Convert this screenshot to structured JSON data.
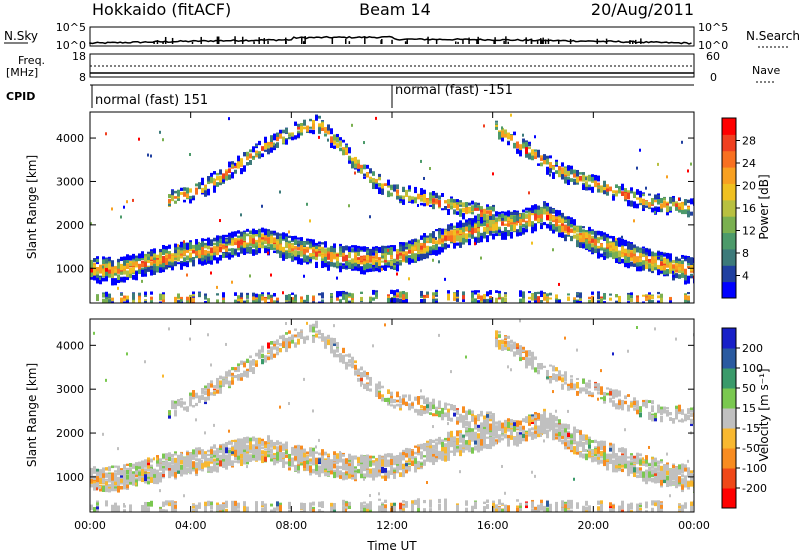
{
  "header": {
    "title": "Hokkaido (fitACF)",
    "beam": "Beam 14",
    "date": "20/Aug/2011"
  },
  "top_panels": {
    "nsky_label": "N.Sky",
    "nsky_ticks": [
      "10^5",
      "10^0"
    ],
    "nsearch_label": "N.Search",
    "nsearch_ticks": [
      "10^5",
      "10^0"
    ],
    "freq_label_1": "Freq.",
    "freq_label_2": "[MHz]",
    "freq_ticks": [
      "18",
      "8"
    ],
    "nave_label": "Nave",
    "nave_ticks": [
      "60",
      "0"
    ],
    "cpid_label": "CPID",
    "cpid_segments": [
      {
        "label": "normal (fast) 151",
        "start_hour": 0
      },
      {
        "label": "normal (fast) -151",
        "start_hour": 12
      }
    ]
  },
  "chart_data": [
    {
      "type": "heatmap",
      "name": "power-panel",
      "ylabel": "Slant Range [km]",
      "ylim": [
        200,
        4600
      ],
      "y_ticks": [
        "4000",
        "3000",
        "2000",
        "1000"
      ],
      "y_tick_values": [
        4000,
        3000,
        2000,
        1000
      ],
      "xlim_hours": [
        0,
        24
      ],
      "colorbar": {
        "label": "Power [dB]",
        "ticks": [
          "28",
          "24",
          "20",
          "16",
          "12",
          "8",
          "4"
        ],
        "tick_values": [
          28,
          24,
          20,
          16,
          12,
          8,
          4
        ],
        "range": [
          0,
          30
        ],
        "colors": [
          "#0000ff",
          "#2040a0",
          "#3c7a7a",
          "#4c9a6a",
          "#7ab050",
          "#b8c040",
          "#f0c020",
          "#f8a020",
          "#f87020",
          "#f04020",
          "#ff0000"
        ]
      },
      "bands": [
        {
          "kind": "main-echo",
          "points": [
            [
              0,
              1050
            ],
            [
              1,
              1000
            ],
            [
              2,
              1150
            ],
            [
              3,
              1300
            ],
            [
              4,
              1400
            ],
            [
              5,
              1500
            ],
            [
              6,
              1650
            ],
            [
              7,
              1700
            ],
            [
              8,
              1500
            ],
            [
              9,
              1400
            ],
            [
              10,
              1300
            ],
            [
              11,
              1250
            ],
            [
              12,
              1300
            ],
            [
              13,
              1500
            ],
            [
              14,
              1750
            ],
            [
              15,
              1900
            ],
            [
              16,
              2050
            ],
            [
              17,
              2100
            ],
            [
              18,
              2300
            ],
            [
              19,
              1950
            ],
            [
              20,
              1650
            ],
            [
              21,
              1450
            ],
            [
              22,
              1250
            ],
            [
              23,
              1100
            ],
            [
              24,
              1000
            ]
          ]
        },
        {
          "kind": "upper-echo",
          "points": [
            [
              3,
              2600
            ],
            [
              4,
              2800
            ],
            [
              5,
              3100
            ],
            [
              6,
              3500
            ],
            [
              7,
              3900
            ],
            [
              8,
              4200
            ],
            [
              9,
              4400
            ],
            [
              10,
              3800
            ],
            [
              11,
              3200
            ],
            [
              12,
              2800
            ],
            [
              13,
              2700
            ],
            [
              14,
              2550
            ],
            [
              15,
              2400
            ],
            [
              16,
              2300
            ]
          ]
        },
        {
          "kind": "late-echo",
          "points": [
            [
              16,
              4300
            ],
            [
              17,
              3900
            ],
            [
              18,
              3500
            ],
            [
              19,
              3200
            ],
            [
              20,
              3000
            ],
            [
              21,
              2800
            ],
            [
              22,
              2600
            ],
            [
              23,
              2500
            ],
            [
              24,
              2450
            ]
          ]
        },
        {
          "kind": "near-range",
          "points": [
            [
              0,
              350
            ],
            [
              4,
              350
            ],
            [
              8,
              320
            ],
            [
              12,
              400
            ],
            [
              16,
              380
            ],
            [
              20,
              350
            ],
            [
              24,
              350
            ]
          ]
        }
      ]
    },
    {
      "type": "heatmap",
      "name": "velocity-panel",
      "ylabel": "Slant Range [km]",
      "xlabel": "Time UT",
      "ylim": [
        200,
        4600
      ],
      "y_ticks": [
        "4000",
        "3000",
        "2000",
        "1000"
      ],
      "y_tick_values": [
        4000,
        3000,
        2000,
        1000
      ],
      "xlim_hours": [
        0,
        24
      ],
      "x_ticks": [
        "00:00",
        "04:00",
        "08:00",
        "12:00",
        "16:00",
        "20:00",
        "00:00"
      ],
      "x_tick_hours": [
        0,
        4,
        8,
        12,
        16,
        20,
        24
      ],
      "colorbar": {
        "label": "Velocity [m s⁻¹]",
        "ticks": [
          "200",
          "100",
          "50",
          "15",
          "-15",
          "-50",
          "-100",
          "-200"
        ],
        "tick_values": [
          200,
          100,
          50,
          15,
          -15,
          -50,
          -100,
          -200
        ],
        "colors": [
          "#ff0000",
          "#f04818",
          "#f88c20",
          "#f8b830",
          "#c0c0c0",
          "#7ac850",
          "#3a9a6a",
          "#2a5aa0",
          "#1820c8"
        ]
      }
    }
  ]
}
